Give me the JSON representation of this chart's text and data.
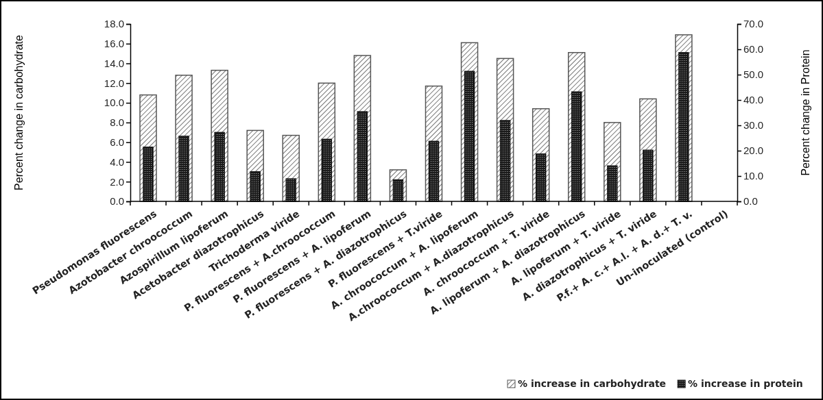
{
  "chart_data": {
    "type": "bar",
    "ylabel": "Percent change in carbohydrate",
    "y2label": "Percent change in Protein",
    "categories": [
      "Pseudomonas fluorescens",
      "Azotobacter chroococcum",
      "Azospirillum lipoferum",
      "Acetobacter diazotrophicus",
      "Trichoderma viride",
      "P. fluorescens + A.chroococcum",
      "P. fluorescens + A. lipoferum",
      "P. fluorescens + A. diazotrophicus",
      "P. fluorescens + T.viride",
      "A. chroococcum + A. lipoferum",
      "A.chroococcum + A.diazotrophicus",
      "A. chroococcum + T. viride",
      "A. lipoferum + A. diazotrophicus",
      "A. lipoferum + T. viride",
      "A. diazotrophicus + T. viride",
      "P.f.+ A. c.+ A.l. + A. d.+ T. v.",
      "Un-inoculated (control)"
    ],
    "series": [
      {
        "name": "% increase in carbohydrate",
        "color": "#555555",
        "values": [
          10.8,
          12.8,
          13.3,
          7.2,
          6.7,
          12.0,
          14.8,
          3.2,
          11.7,
          16.1,
          14.5,
          9.4,
          15.1,
          8.0,
          10.4,
          16.9,
          0
        ]
      },
      {
        "name": "% increase in protein",
        "color": "#1a1a1a",
        "axis": "y2",
        "values": [
          21.4,
          25.7,
          27.2,
          11.7,
          8.9,
          24.5,
          35.4,
          8.5,
          23.7,
          51.3,
          31.9,
          18.7,
          43.2,
          14.0,
          20.2,
          58.7,
          0
        ]
      }
    ],
    "ylim": [
      0,
      18
    ],
    "yticks": [
      {
        "value": 0,
        "label": "0.0"
      },
      {
        "value": 2,
        "label": "2.0"
      },
      {
        "value": 4,
        "label": "4.0"
      },
      {
        "value": 6,
        "label": "6.0"
      },
      {
        "value": 8,
        "label": "8.0"
      },
      {
        "value": 10,
        "label": "10.0"
      },
      {
        "value": 12,
        "label": "12.0"
      },
      {
        "value": 14,
        "label": "14.0"
      },
      {
        "value": 16,
        "label": "16.0"
      },
      {
        "value": 18,
        "label": "18.0"
      }
    ],
    "y2lim": [
      0,
      70
    ],
    "y2ticks": [
      {
        "value": 0,
        "label": "0.0"
      },
      {
        "value": 10,
        "label": "10.0"
      },
      {
        "value": 20,
        "label": "20.0"
      },
      {
        "value": 30,
        "label": "30.0"
      },
      {
        "value": 40,
        "label": "40.0"
      },
      {
        "value": 50,
        "label": "50.0"
      },
      {
        "value": 60,
        "label": "60.0"
      },
      {
        "value": 70,
        "label": "70.0"
      }
    ],
    "legend": "bottom right"
  }
}
